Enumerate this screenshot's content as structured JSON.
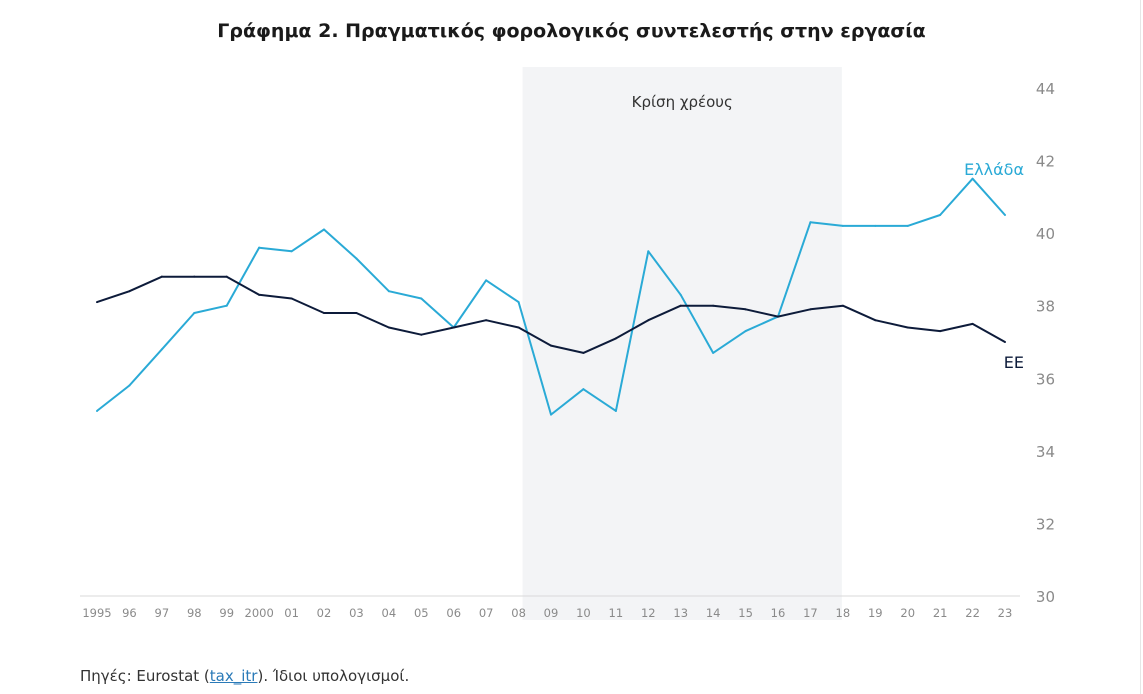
{
  "chart_data": {
    "type": "line",
    "title": "Γράφημα 2. Πραγματικός φορολογικός συντελεστής στην εργασία",
    "x": [
      1995,
      1996,
      1997,
      1998,
      1999,
      2000,
      2001,
      2002,
      2003,
      2004,
      2005,
      2006,
      2007,
      2008,
      2009,
      2010,
      2011,
      2012,
      2013,
      2014,
      2015,
      2016,
      2017,
      2018,
      2019,
      2020,
      2021,
      2022,
      2023
    ],
    "x_tick_labels": [
      "1995",
      "96",
      "97",
      "98",
      "99",
      "2000",
      "01",
      "02",
      "03",
      "04",
      "05",
      "06",
      "07",
      "08",
      "09",
      "10",
      "11",
      "12",
      "13",
      "14",
      "15",
      "16",
      "17",
      "18",
      "19",
      "20",
      "21",
      "22",
      "23"
    ],
    "y_ticks": [
      30,
      32,
      34,
      36,
      38,
      40,
      42,
      44
    ],
    "ylim": [
      30,
      44
    ],
    "y_axis_side": "right",
    "grid": false,
    "series": [
      {
        "name": "Ελλάδα",
        "color": "#2aaad6",
        "values": [
          35.1,
          35.8,
          36.8,
          37.8,
          38.0,
          39.6,
          39.5,
          40.1,
          39.3,
          38.4,
          38.2,
          37.4,
          38.7,
          38.1,
          35.0,
          35.7,
          35.1,
          39.5,
          38.3,
          36.7,
          37.3,
          37.7,
          40.3,
          40.2,
          40.2,
          40.2,
          40.5,
          41.5,
          40.5
        ]
      },
      {
        "name": "ΕΕ",
        "color": "#0d1b3a",
        "values": [
          38.1,
          38.4,
          38.8,
          38.8,
          38.8,
          38.3,
          38.2,
          37.8,
          37.8,
          37.4,
          37.2,
          37.4,
          37.6,
          37.4,
          36.9,
          36.7,
          37.1,
          37.6,
          38.0,
          38.0,
          37.9,
          37.7,
          37.9,
          38.0,
          37.6,
          37.4,
          37.3,
          37.5,
          37.0
        ]
      }
    ],
    "annotations": [
      {
        "type": "shaded-period",
        "label": "Κρίση χρέους",
        "from": 2008,
        "to": 2018,
        "color": "#f3f4f6"
      }
    ]
  },
  "source": {
    "prefix": "Πηγές: Eurostat (",
    "link": "tax_itr",
    "suffix": ").  Ίδιοι υπολογισμοί."
  }
}
